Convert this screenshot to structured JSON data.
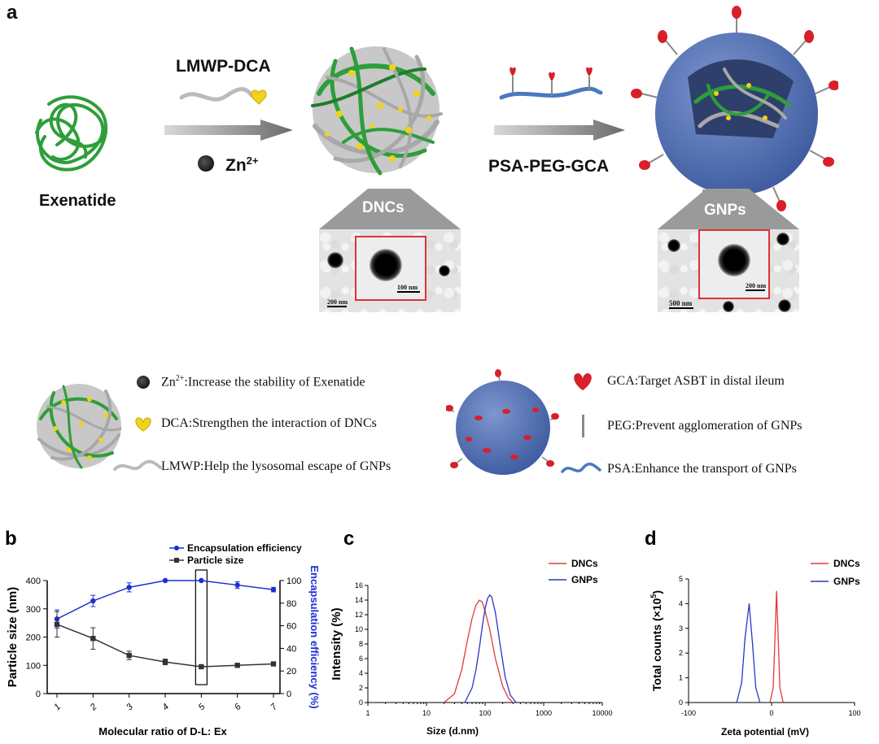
{
  "panel_a": {
    "label": "a",
    "exenatide": "Exenatide",
    "lmwp_dca": "LMWP-DCA",
    "zn_base": "Zn",
    "zn_sup": "2+",
    "psa_peg_gca": "PSA-PEG-GCA",
    "dncs_label": "DNCs",
    "gnps_label": "GNPs",
    "dncs_inset_scale": "100 nm",
    "dncs_scale": "200 nm",
    "gnps_inset_scale": "200 nm",
    "gnps_scale": "500 nm"
  },
  "legend": {
    "zn_base": "Zn",
    "zn_sup": "2+",
    "zn_text": ":Increase the stability of Exenatide",
    "dca": "DCA:Strengthen the interaction of DNCs",
    "lmwp": "LMWP:Help the lysosomal escape of GNPs",
    "gca": "GCA:Target ASBT in distal ileum",
    "peg": "PEG:Prevent agglomeration of  GNPs",
    "psa": "PSA:Enhance the transport of GNPs"
  },
  "colors": {
    "green": "#2e9e3a",
    "gray": "#a8a8a8",
    "yellow": "#f2d21a",
    "red": "#d81f2a",
    "sphere": "#5b78b8",
    "ee_line": "#1a2fd6",
    "ps_line": "#333333",
    "dnc_line": "#e53935",
    "gnp_line": "#2a35c9"
  },
  "chart_data": [
    {
      "type": "line",
      "panel": "b",
      "xlabel": "Molecular ratio of  D-L: Ex",
      "ylabel": "Particle size (nm)",
      "y2label": "Encapsulation efficiency (%)",
      "categories": [
        "1",
        "2",
        "3",
        "4",
        "5",
        "6",
        "7"
      ],
      "ylim": [
        0,
        400
      ],
      "y2lim": [
        0,
        100
      ],
      "yticks": [
        "0",
        "100",
        "200",
        "300",
        "400"
      ],
      "y2ticks": [
        "0",
        "20",
        "40",
        "60",
        "80",
        "100"
      ],
      "series": [
        {
          "name": "Encapsulation efficiency",
          "axis": "right",
          "values": [
            66,
            82,
            94,
            100,
            100,
            96,
            92
          ],
          "err": [
            8,
            5,
            4,
            0,
            0,
            3,
            2
          ]
        },
        {
          "name": "Particle size",
          "axis": "left",
          "values": [
            245,
            195,
            135,
            112,
            95,
            100,
            105
          ],
          "err": [
            45,
            38,
            15,
            10,
            4,
            4,
            4
          ]
        }
      ],
      "highlight_category": "5",
      "legend": "top-right"
    },
    {
      "type": "line",
      "panel": "c",
      "xlabel": "Size (d.nm)",
      "ylabel": "Intensity (%)",
      "xscale": "log",
      "xticks": [
        "1",
        "10",
        "100",
        "1000",
        "10000"
      ],
      "yticks": [
        "0",
        "2",
        "4",
        "6",
        "8",
        "10",
        "12",
        "14",
        "16"
      ],
      "ylim": [
        0,
        16
      ],
      "series": [
        {
          "name": "DNCs",
          "x": [
            20,
            30,
            40,
            50,
            60,
            70,
            80,
            90,
            100,
            120,
            150,
            200,
            250,
            300
          ],
          "y": [
            0,
            1.2,
            4.5,
            8.5,
            11.5,
            13.3,
            14.0,
            13.7,
            12.5,
            10.0,
            6.0,
            2.2,
            0.6,
            0
          ]
        },
        {
          "name": "GNPs",
          "x": [
            45,
            60,
            70,
            80,
            90,
            100,
            110,
            120,
            130,
            150,
            180,
            220,
            270,
            340
          ],
          "y": [
            0,
            2.0,
            4.5,
            7.5,
            10.5,
            12.8,
            14.2,
            14.7,
            14.4,
            12.3,
            8.0,
            3.5,
            1.0,
            0
          ]
        }
      ],
      "legend": "top-right"
    },
    {
      "type": "line",
      "panel": "d",
      "xlabel": "Zeta potential (mV)",
      "ylabel_base": "Total counts (×10",
      "ylabel_sup": "5",
      "ylabel_end": ")",
      "xticks": [
        "-100",
        "0",
        "100"
      ],
      "yticks": [
        "0",
        "1",
        "2",
        "3",
        "4",
        "5"
      ],
      "xlim": [
        -100,
        100
      ],
      "ylim": [
        0,
        5
      ],
      "series": [
        {
          "name": "DNCs",
          "x": [
            -2,
            2,
            4,
            6,
            8,
            10,
            14
          ],
          "y": [
            0,
            0.6,
            2.5,
            4.5,
            2.6,
            0.6,
            0
          ]
        },
        {
          "name": "GNPs",
          "x": [
            -42,
            -36,
            -32,
            -27,
            -23,
            -19,
            -14
          ],
          "y": [
            0,
            0.8,
            2.6,
            4.0,
            2.4,
            0.6,
            0
          ]
        }
      ],
      "legend": "top-right"
    }
  ]
}
